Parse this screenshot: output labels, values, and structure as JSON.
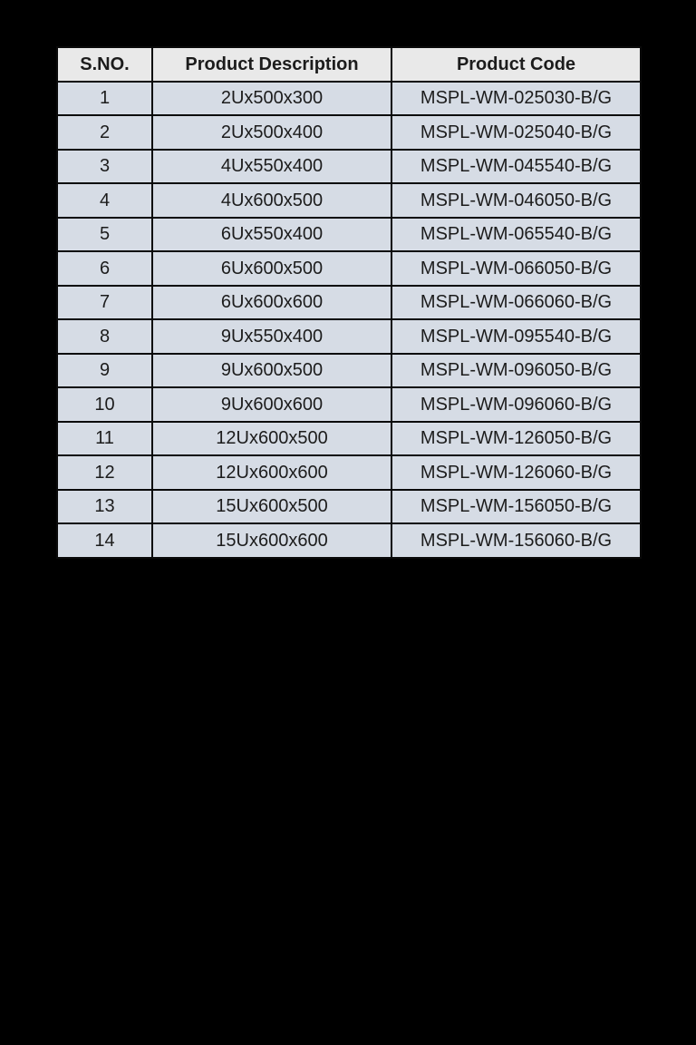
{
  "page": {
    "background_color": "#000000"
  },
  "table": {
    "colors": {
      "header_bg": "#e9e9e9",
      "row_bg": "#d6dce5",
      "border": "#0a0a0a",
      "text": "#1c1c1c"
    },
    "headers": {
      "sno": "S.NO.",
      "description": "Product Description",
      "code": "Product Code"
    },
    "rows": [
      {
        "sno": "1",
        "description": "2Ux500x300",
        "code": "MSPL-WM-025030-B/G"
      },
      {
        "sno": "2",
        "description": "2Ux500x400",
        "code": "MSPL-WM-025040-B/G"
      },
      {
        "sno": "3",
        "description": "4Ux550x400",
        "code": "MSPL-WM-045540-B/G"
      },
      {
        "sno": "4",
        "description": "4Ux600x500",
        "code": "MSPL-WM-046050-B/G"
      },
      {
        "sno": "5",
        "description": "6Ux550x400",
        "code": "MSPL-WM-065540-B/G"
      },
      {
        "sno": "6",
        "description": "6Ux600x500",
        "code": "MSPL-WM-066050-B/G"
      },
      {
        "sno": "7",
        "description": "6Ux600x600",
        "code": "MSPL-WM-066060-B/G"
      },
      {
        "sno": "8",
        "description": "9Ux550x400",
        "code": "MSPL-WM-095540-B/G"
      },
      {
        "sno": "9",
        "description": "9Ux600x500",
        "code": "MSPL-WM-096050-B/G"
      },
      {
        "sno": "10",
        "description": "9Ux600x600",
        "code": "MSPL-WM-096060-B/G"
      },
      {
        "sno": "11",
        "description": "12Ux600x500",
        "code": "MSPL-WM-126050-B/G"
      },
      {
        "sno": "12",
        "description": "12Ux600x600",
        "code": "MSPL-WM-126060-B/G"
      },
      {
        "sno": "13",
        "description": "15Ux600x500",
        "code": "MSPL-WM-156050-B/G"
      },
      {
        "sno": "14",
        "description": "15Ux600x600",
        "code": "MSPL-WM-156060-B/G"
      }
    ]
  }
}
